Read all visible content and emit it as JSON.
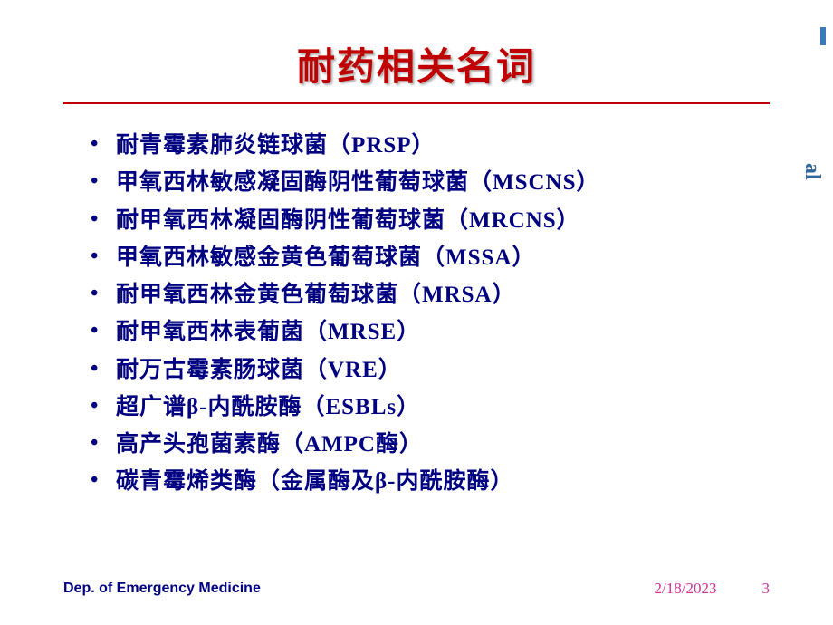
{
  "title": "耐药相关名词",
  "title_color": "#c00000",
  "divider_color": "#c00000",
  "bullet_color": "#000080",
  "background_color": "#ffffff",
  "bullets": [
    "耐青霉素肺炎链球菌（PRSP）",
    "甲氧西林敏感凝固酶阴性葡萄球菌（MSCNS）",
    "耐甲氧西林凝固酶阴性葡萄球菌（MRCNS）",
    "甲氧西林敏感金黄色葡萄球菌（MSSA）",
    "耐甲氧西林金黄色葡萄球菌（MRSA）",
    "耐甲氧西林表葡菌（MRSE）",
    "耐万古霉素肠球菌（VRE）",
    "超广谱β-内酰胺酶（ESBLs）",
    "高产头孢菌素酶（AMPC酶）",
    "碳青霉烯类酶（金属酶及β-内酰胺酶）"
  ],
  "footer": {
    "department": "Dep. of Emergency Medicine",
    "date": "2/18/2023",
    "page_number": "3",
    "text_color": "#cc3399",
    "dept_color": "#000080"
  },
  "side_text": "al",
  "watermark": "·",
  "title_fontsize": 42,
  "bullet_fontsize": 25
}
